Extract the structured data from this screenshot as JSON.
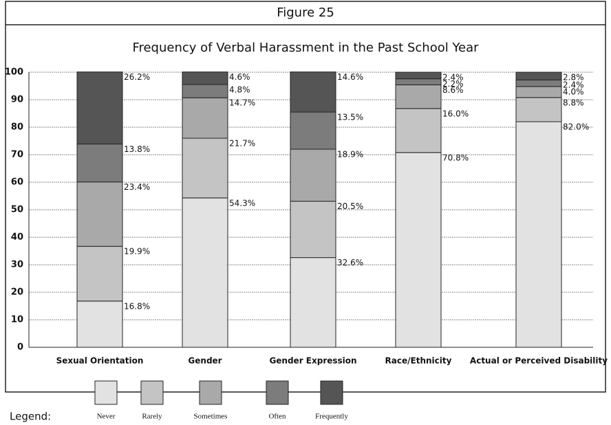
{
  "chart_data": {
    "type": "stacked_bar",
    "figure_label": "Figure 25",
    "title": "Frequency of Verbal Harassment in the Past School Year",
    "legend_label": "Legend:",
    "categories": [
      "Sexual Orientation",
      "Gender",
      "Gender Expression",
      "Race/Ethnicity",
      "Actual or Perceived Disability"
    ],
    "series": [
      {
        "name": "Never",
        "color": "#e2e2e2",
        "values": [
          16.8,
          54.3,
          32.6,
          70.8,
          82.0
        ],
        "value_labels": [
          "16.8%",
          "54.3%",
          "32.6%",
          "70.8%",
          "82.0%"
        ]
      },
      {
        "name": "Rarely",
        "color": "#c4c4c4",
        "values": [
          19.9,
          21.7,
          20.5,
          16.0,
          8.8
        ],
        "value_labels": [
          "19.9%",
          "21.7%",
          "20.5%",
          "16.0%",
          "8.8%"
        ]
      },
      {
        "name": "Sometimes",
        "color": "#a9a9a9",
        "values": [
          23.4,
          14.7,
          18.9,
          8.6,
          4.0
        ],
        "value_labels": [
          "23.4%",
          "14.7%",
          "18.9%",
          "8.6%",
          "4.0%"
        ]
      },
      {
        "name": "Often",
        "color": "#7c7c7c",
        "values": [
          13.8,
          4.8,
          13.5,
          2.2,
          2.4
        ],
        "value_labels": [
          "13.8%",
          "4.8%",
          "13.5%",
          "2.2%",
          "2.4%"
        ]
      },
      {
        "name": "Frequently",
        "color": "#555555",
        "values": [
          26.2,
          4.6,
          14.6,
          2.4,
          2.8
        ],
        "value_labels": [
          "26.2%",
          "4.6%",
          "14.6%",
          "2.4%",
          "2.8%"
        ]
      }
    ],
    "ylim": [
      0,
      100
    ],
    "yticks": [
      0,
      10,
      20,
      30,
      40,
      50,
      60,
      70,
      80,
      90,
      100
    ],
    "grid": true
  }
}
